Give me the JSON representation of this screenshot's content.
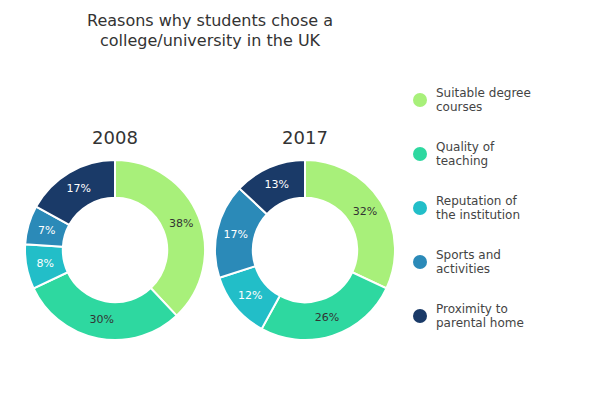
{
  "chart_data": {
    "type": "donut",
    "title": "Reasons why students chose a\ncollege/university in the UK",
    "categories": [
      "Suitable degree\ncourses",
      "Quality of\nteaching",
      "Reputation of\nthe institution",
      "Sports and\nactivities",
      "Proximity to\nparental home"
    ],
    "colors": [
      "#a8f07a",
      "#2ed8a0",
      "#22bec8",
      "#2b8ab8",
      "#1a3a68"
    ],
    "series": [
      {
        "name": "2008",
        "values": [
          38,
          30,
          8,
          7,
          17
        ],
        "value_labels": [
          "38%",
          "30%",
          "8%",
          "7%",
          "17%"
        ]
      },
      {
        "name": "2017",
        "values": [
          32,
          26,
          12,
          17,
          13
        ],
        "value_labels": [
          "32%",
          "26%",
          "12%",
          "17%",
          "13%"
        ]
      }
    ],
    "data_labels": true,
    "legend": "right"
  }
}
